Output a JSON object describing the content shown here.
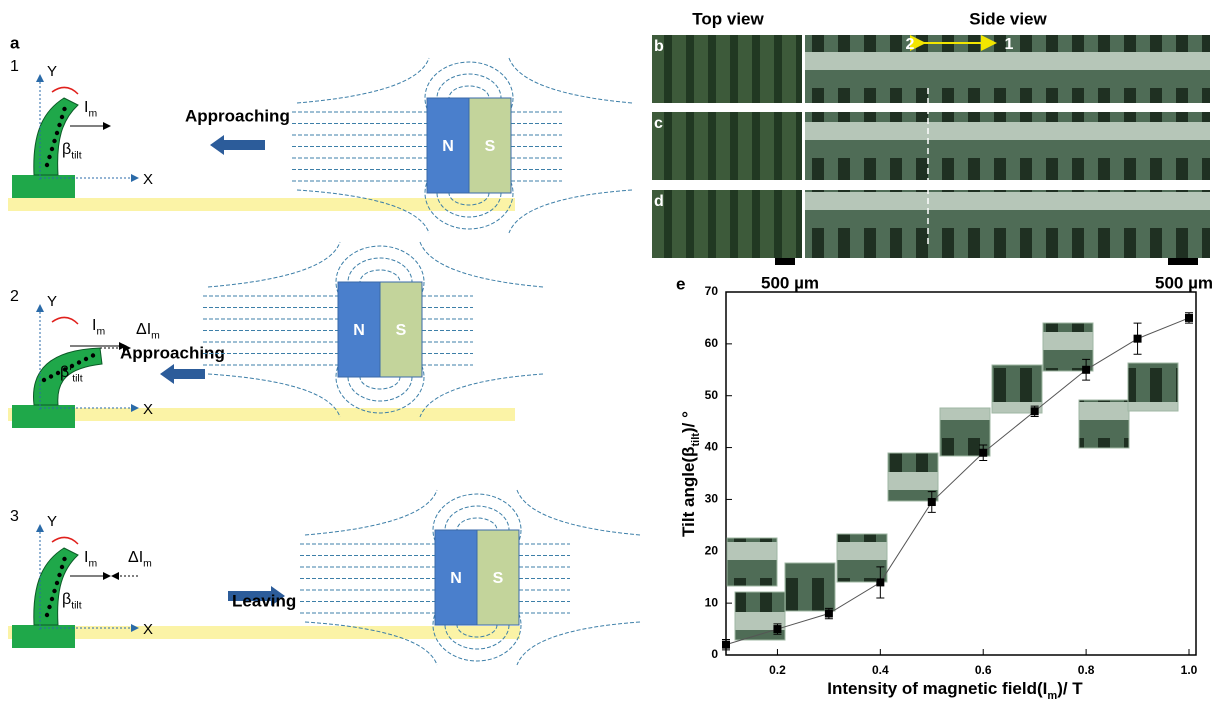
{
  "panel_a": {
    "label": "a",
    "rows": [
      {
        "number": "1",
        "y_axis": "Y",
        "x_axis": "X",
        "force": [
          "I",
          "m"
        ],
        "angle": [
          "β",
          "tilt"
        ],
        "action": "Approaching",
        "magnet": [
          "N",
          "S"
        ]
      },
      {
        "number": "2",
        "y_axis": "Y",
        "x_axis": "X",
        "force": [
          "I",
          "m"
        ],
        "delta": [
          "ΔI",
          "m"
        ],
        "angle": [
          "β′",
          "tilt"
        ],
        "action": "Approaching",
        "magnet": [
          "N",
          "S"
        ]
      },
      {
        "number": "3",
        "y_axis": "Y",
        "x_axis": "X",
        "force": [
          "I",
          "m"
        ],
        "delta": [
          "ΔI",
          "m"
        ],
        "angle": [
          "β",
          "tilt"
        ],
        "action": "Leaving",
        "magnet": [
          "N",
          "S"
        ]
      }
    ]
  },
  "panel_images": {
    "top_view": "Top view",
    "side_view": "Side view",
    "labels": [
      "b",
      "c",
      "d"
    ],
    "markers": [
      "2",
      "1"
    ],
    "scale_bars": [
      "500 µm",
      "500 µm"
    ]
  },
  "chart_data": {
    "type": "errorbar",
    "panel_label": "e",
    "x_label": [
      "Intensity of magnetic field(I",
      "m",
      ")/ T"
    ],
    "y_label": [
      "Tilt angle(β",
      "tilt",
      ")/ °"
    ],
    "x": [
      0.1,
      0.2,
      0.3,
      0.4,
      0.5,
      0.6,
      0.7,
      0.8,
      0.9,
      1.0
    ],
    "values": [
      2,
      5,
      8,
      14,
      29.5,
      39,
      47,
      55,
      61,
      65
    ],
    "errors": [
      1,
      1,
      1,
      3,
      2,
      1.5,
      1,
      2,
      3,
      1
    ],
    "color": "#000000",
    "xlim": [
      0.1,
      1.0
    ],
    "xticks": [
      0.2,
      0.4,
      0.6,
      0.8,
      {
        "value": 1,
        "label": "1.0"
      }
    ],
    "ylim": [
      0,
      70
    ],
    "yticks": [
      0,
      10,
      20,
      30,
      40,
      50,
      60,
      70
    ]
  }
}
